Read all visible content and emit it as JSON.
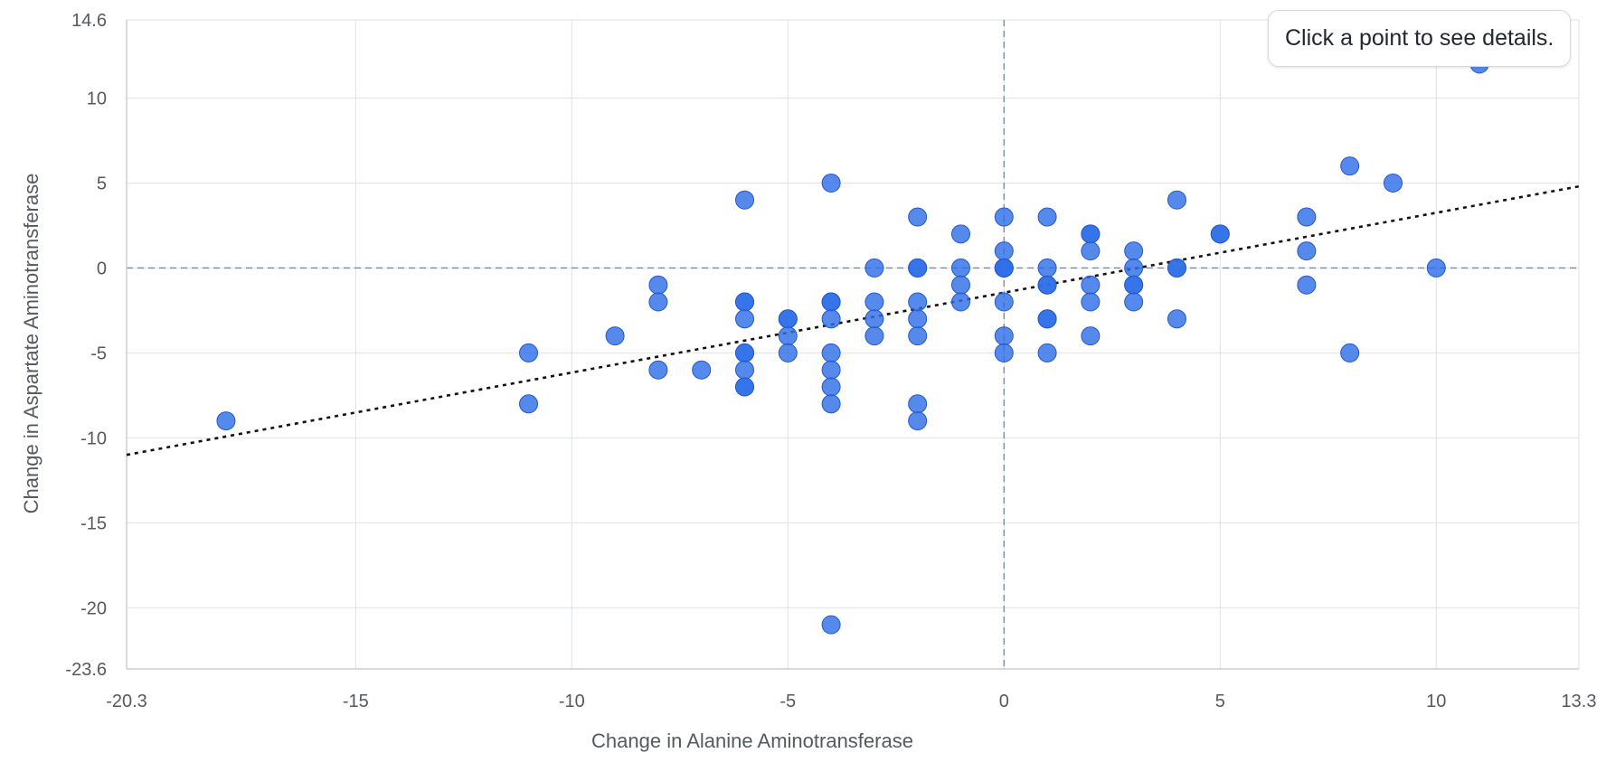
{
  "chart_data": {
    "type": "scatter",
    "title": "",
    "xlabel": "Change in Alanine Aminotransferase",
    "ylabel": "Change in Aspartate Aminotransferase",
    "xlim": [
      -20.3,
      13.3
    ],
    "ylim": [
      -23.6,
      14.6
    ],
    "x_ticks": [
      -20.3,
      -15,
      -10,
      -5,
      0,
      5,
      10,
      13.3
    ],
    "y_ticks": [
      -23.6,
      -20,
      -15,
      -10,
      -5,
      0,
      5,
      10,
      14.6
    ],
    "grid": true,
    "zero_lines": true,
    "trendline": {
      "x": [
        -20.3,
        13.3
      ],
      "y": [
        -11.0,
        4.8
      ]
    },
    "points": [
      {
        "x": -18,
        "y": -9
      },
      {
        "x": -11,
        "y": -5
      },
      {
        "x": -11,
        "y": -8
      },
      {
        "x": -9,
        "y": -4
      },
      {
        "x": -8,
        "y": -1
      },
      {
        "x": -8,
        "y": -2
      },
      {
        "x": -8,
        "y": -6
      },
      {
        "x": -7,
        "y": -6
      },
      {
        "x": -6,
        "y": 4
      },
      {
        "x": -6,
        "y": -2
      },
      {
        "x": -6,
        "y": -2
      },
      {
        "x": -6,
        "y": -3
      },
      {
        "x": -6,
        "y": -5
      },
      {
        "x": -6,
        "y": -5
      },
      {
        "x": -6,
        "y": -6
      },
      {
        "x": -6,
        "y": -7
      },
      {
        "x": -6,
        "y": -7
      },
      {
        "x": -5,
        "y": -3
      },
      {
        "x": -5,
        "y": -3
      },
      {
        "x": -5,
        "y": -4
      },
      {
        "x": -5,
        "y": -5
      },
      {
        "x": -4,
        "y": 5
      },
      {
        "x": -4,
        "y": -2
      },
      {
        "x": -4,
        "y": -2
      },
      {
        "x": -4,
        "y": -3
      },
      {
        "x": -4,
        "y": -5
      },
      {
        "x": -4,
        "y": -6
      },
      {
        "x": -4,
        "y": -7
      },
      {
        "x": -4,
        "y": -8
      },
      {
        "x": -4,
        "y": -21
      },
      {
        "x": -3,
        "y": 0
      },
      {
        "x": -3,
        "y": -2
      },
      {
        "x": -3,
        "y": -3
      },
      {
        "x": -3,
        "y": -4
      },
      {
        "x": -2,
        "y": 3
      },
      {
        "x": -2,
        "y": 0
      },
      {
        "x": -2,
        "y": 0
      },
      {
        "x": -2,
        "y": -2
      },
      {
        "x": -2,
        "y": -3
      },
      {
        "x": -2,
        "y": -4
      },
      {
        "x": -2,
        "y": -8
      },
      {
        "x": -2,
        "y": -9
      },
      {
        "x": -1,
        "y": 2
      },
      {
        "x": -1,
        "y": 0
      },
      {
        "x": -1,
        "y": -1
      },
      {
        "x": -1,
        "y": -2
      },
      {
        "x": 0,
        "y": 3
      },
      {
        "x": 0,
        "y": 1
      },
      {
        "x": 0,
        "y": 0
      },
      {
        "x": 0,
        "y": 0
      },
      {
        "x": 0,
        "y": 0
      },
      {
        "x": 0,
        "y": -2
      },
      {
        "x": 0,
        "y": -4
      },
      {
        "x": 0,
        "y": -5
      },
      {
        "x": 1,
        "y": 3
      },
      {
        "x": 1,
        "y": 0
      },
      {
        "x": 1,
        "y": -1
      },
      {
        "x": 1,
        "y": -1
      },
      {
        "x": 1,
        "y": -3
      },
      {
        "x": 1,
        "y": -3
      },
      {
        "x": 1,
        "y": -5
      },
      {
        "x": 2,
        "y": 2
      },
      {
        "x": 2,
        "y": 2
      },
      {
        "x": 2,
        "y": 1
      },
      {
        "x": 2,
        "y": -1
      },
      {
        "x": 2,
        "y": -2
      },
      {
        "x": 2,
        "y": -4
      },
      {
        "x": 3,
        "y": 1
      },
      {
        "x": 3,
        "y": 0
      },
      {
        "x": 3,
        "y": -1
      },
      {
        "x": 3,
        "y": -1
      },
      {
        "x": 3,
        "y": -2
      },
      {
        "x": 4,
        "y": 4
      },
      {
        "x": 4,
        "y": 0
      },
      {
        "x": 4,
        "y": 0
      },
      {
        "x": 4,
        "y": -3
      },
      {
        "x": 5,
        "y": 2
      },
      {
        "x": 5,
        "y": 2
      },
      {
        "x": 7,
        "y": 3
      },
      {
        "x": 7,
        "y": 1
      },
      {
        "x": 7,
        "y": -1
      },
      {
        "x": 8,
        "y": 6
      },
      {
        "x": 8,
        "y": -5
      },
      {
        "x": 9,
        "y": 5
      },
      {
        "x": 10,
        "y": 0
      },
      {
        "x": 11,
        "y": 12
      }
    ],
    "point_color": "#2f6fe8",
    "trend_color": "#111111"
  },
  "tooltip": {
    "text": "Click a point to see details."
  }
}
